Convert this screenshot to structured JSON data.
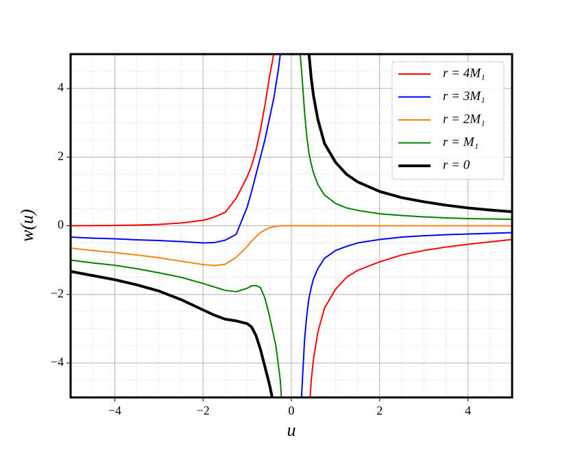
{
  "chart_data": {
    "type": "line",
    "x_label": "u",
    "y_label": "w(u)",
    "x": [
      -5,
      -4.5,
      -4,
      -3.5,
      -3,
      -2.5,
      -2,
      -1.75,
      -1.5,
      -1.25,
      -1,
      -0.9,
      -0.8,
      -0.7,
      -0.6,
      -0.5,
      -0.45,
      -0.4,
      -0.35,
      -0.3,
      -0.25,
      -0.2,
      0,
      0.2,
      0.25,
      0.3,
      0.35,
      0.4,
      0.45,
      0.5,
      0.6,
      0.75,
      1,
      1.25,
      1.5,
      2,
      2.5,
      3,
      3.5,
      4,
      4.5,
      5
    ],
    "series": [
      {
        "name": "r = 4M₁",
        "color": "#ff0000",
        "width": 2,
        "values": [
          0,
          0.005,
          0.01,
          0.02,
          0.04,
          0.08,
          0.16,
          0.25,
          0.39,
          0.8,
          1.43,
          1.75,
          2.2,
          2.8,
          3.5,
          4.3,
          4.65,
          5.0,
          5.6,
          null,
          null,
          null,
          null,
          null,
          null,
          null,
          null,
          -5.5,
          -4.5,
          -3.9,
          -3.1,
          -2.4,
          -1.85,
          -1.5,
          -1.3,
          -1.05,
          -0.85,
          -0.72,
          -0.62,
          -0.54,
          -0.47,
          -0.4
        ]
      },
      {
        "name": "r = 3M₁",
        "color": "#0000ff",
        "width": 2,
        "values": [
          -0.33,
          -0.36,
          -0.38,
          -0.41,
          -0.43,
          -0.46,
          -0.5,
          -0.49,
          -0.42,
          -0.25,
          0.55,
          1.0,
          1.5,
          2.0,
          2.5,
          3.1,
          3.4,
          3.7,
          4.1,
          4.5,
          5.0,
          6.0,
          null,
          -5.8,
          -4.5,
          -3.3,
          -2.6,
          -2.1,
          -1.8,
          -1.55,
          -1.25,
          -0.95,
          -0.72,
          -0.6,
          -0.5,
          -0.4,
          -0.33,
          -0.29,
          -0.26,
          -0.24,
          -0.22,
          -0.2
        ]
      },
      {
        "name": "r = 2M₁",
        "color": "#ff7f0e",
        "width": 2,
        "values": [
          -0.65,
          -0.72,
          -0.78,
          -0.85,
          -0.93,
          -1.03,
          -1.13,
          -1.16,
          -1.12,
          -0.92,
          -0.6,
          -0.45,
          -0.32,
          -0.2,
          -0.12,
          -0.06,
          -0.04,
          -0.03,
          -0.02,
          -0.01,
          0,
          0,
          0,
          0,
          0,
          0,
          0,
          0,
          0,
          0,
          0,
          0,
          0,
          0,
          0,
          0,
          0,
          0,
          0,
          0,
          0,
          0
        ]
      },
      {
        "name": "r = M₁",
        "color": "#008000",
        "width": 2,
        "values": [
          -1.0,
          -1.08,
          -1.15,
          -1.25,
          -1.37,
          -1.5,
          -1.68,
          -1.78,
          -1.88,
          -1.92,
          -1.82,
          -1.75,
          -1.74,
          -1.8,
          -2.1,
          -2.6,
          -2.9,
          -3.2,
          -3.5,
          -4.0,
          -4.5,
          -5.5,
          null,
          5.0,
          4.2,
          3.3,
          2.6,
          2.1,
          1.8,
          1.55,
          1.2,
          0.9,
          0.65,
          0.52,
          0.45,
          0.35,
          0.3,
          0.26,
          0.23,
          0.21,
          0.2,
          0.19
        ]
      },
      {
        "name": "r = 0",
        "color": "#000000",
        "width": 4,
        "values": [
          -1.33,
          -1.45,
          -1.57,
          -1.72,
          -1.9,
          -2.15,
          -2.45,
          -2.6,
          -2.72,
          -2.77,
          -2.85,
          -2.95,
          -3.2,
          -3.6,
          -4.1,
          -4.6,
          -4.9,
          -5.3,
          null,
          null,
          null,
          null,
          null,
          null,
          null,
          null,
          null,
          5.0,
          4.3,
          3.8,
          3.1,
          2.4,
          1.85,
          1.5,
          1.28,
          1.0,
          0.82,
          0.7,
          0.6,
          0.52,
          0.46,
          0.41
        ]
      }
    ],
    "xlim": [
      -5,
      5
    ],
    "ylim": [
      -5,
      5
    ],
    "xticks": [
      {
        "value": -4,
        "label": "−4"
      },
      {
        "value": -2,
        "label": "−2"
      },
      0,
      2,
      4
    ],
    "yticks": [
      {
        "value": -4,
        "label": "−4"
      },
      {
        "value": -2,
        "label": "−2"
      },
      0,
      2,
      4
    ],
    "grid": true,
    "minor_grid": true,
    "legend": "upper right"
  }
}
